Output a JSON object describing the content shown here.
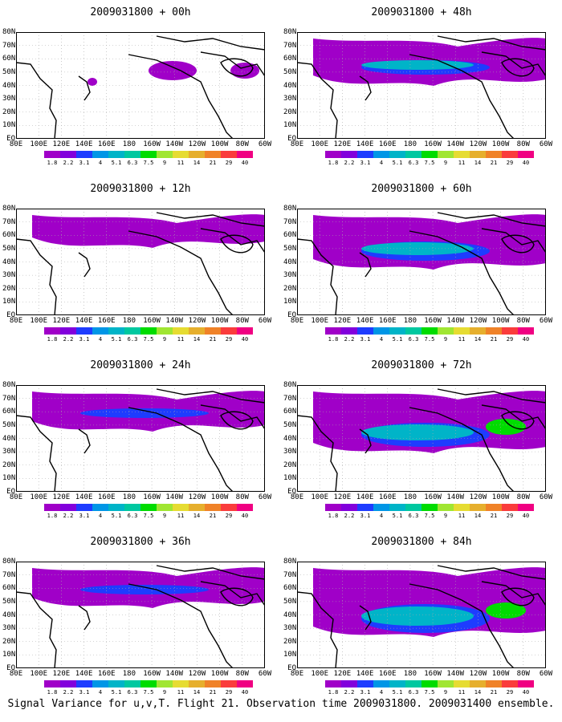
{
  "panels": [
    {
      "title": "2009031800 + 00h"
    },
    {
      "title": "2009031800 + 48h"
    },
    {
      "title": "2009031800 + 12h"
    },
    {
      "title": "2009031800 + 60h"
    },
    {
      "title": "2009031800 + 24h"
    },
    {
      "title": "2009031800 + 72h"
    },
    {
      "title": "2009031800 + 36h"
    },
    {
      "title": "2009031800 + 84h"
    }
  ],
  "lat_labels": [
    "80N",
    "70N",
    "60N",
    "50N",
    "40N",
    "30N",
    "20N",
    "10N",
    "EQ"
  ],
  "lon_labels": [
    "80E",
    "100E",
    "120E",
    "140E",
    "160E",
    "180",
    "160W",
    "140W",
    "120W",
    "100W",
    "80W",
    "60W"
  ],
  "colorbar": {
    "labels": [
      "1.8",
      "2.2",
      "3.1",
      "4",
      "5.1",
      "6.3",
      "7.5",
      "9",
      "11",
      "14",
      "21",
      "29",
      "40"
    ],
    "colors": [
      "#a000c8",
      "#8200dc",
      "#1e3cff",
      "#0096e6",
      "#00b4c8",
      "#00c8a0",
      "#00dc00",
      "#a0e632",
      "#e6dc32",
      "#e6af2d",
      "#f08228",
      "#fa3c3c",
      "#f00082"
    ]
  },
  "caption": "Signal Variance for u,v,T. Flight 21. Observation time 2009031800. 2009031400 ensemble."
}
